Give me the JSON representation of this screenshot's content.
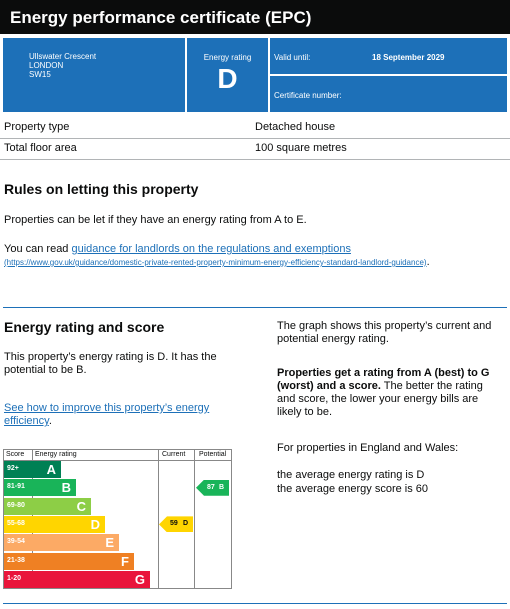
{
  "header": {
    "title": "Energy performance certificate (EPC)"
  },
  "summary": {
    "address": [
      "Ullswater Crescent",
      "LONDON",
      "SW15"
    ],
    "energy_rating_label": "Energy rating",
    "energy_rating": "D",
    "valid_until_label": "Valid until:",
    "valid_until": "18 September 2029",
    "certificate_number_label": "Certificate number:"
  },
  "property": [
    [
      "Property type",
      "Detached house"
    ],
    [
      "Total floor area",
      "100 square metres"
    ]
  ],
  "letting": {
    "heading": "Rules on letting this property",
    "text": "Properties can be let if they have an energy rating from A to E.",
    "read_prefix": "You can read",
    "link_text": "guidance for landlords on the regulations and exemptions",
    "link_url": "(https://www.gov.uk/guidance/domestic-private-rented-property-minimum-energy-efficiency-standard-landlord-guidance)",
    "link_suffix": "."
  },
  "rating": {
    "heading": "Energy rating and score",
    "text": "This property’s energy rating is D. It has the potential to be B.",
    "link_text": "See how to improve this property’s energy efficiency",
    "link_suffix": ".",
    "right_intro": "The graph shows this property’s current and potential energy rating.",
    "right_bold": "Properties get a rating from A (best) to G (worst) and a score.",
    "right_rest": " The better the rating and score, the lower your energy bills are likely to be.",
    "region": "For properties in England and Wales:",
    "avg_rating": "the average energy rating is D",
    "avg_score": "the average energy score is 60"
  },
  "chart": {
    "headers": [
      "Score",
      "Energy rating",
      "Current",
      "Potential"
    ],
    "bands": [
      {
        "score": "92+",
        "letter": "A"
      },
      {
        "score": "81-91",
        "letter": "B"
      },
      {
        "score": "69-80",
        "letter": "C"
      },
      {
        "score": "55-68",
        "letter": "D"
      },
      {
        "score": "39-54",
        "letter": "E"
      },
      {
        "score": "21-38",
        "letter": "F"
      },
      {
        "score": "1-20",
        "letter": "G"
      }
    ],
    "current": {
      "score": "59",
      "letter": "D"
    },
    "potential": {
      "score": "87",
      "letter": "B"
    }
  }
}
